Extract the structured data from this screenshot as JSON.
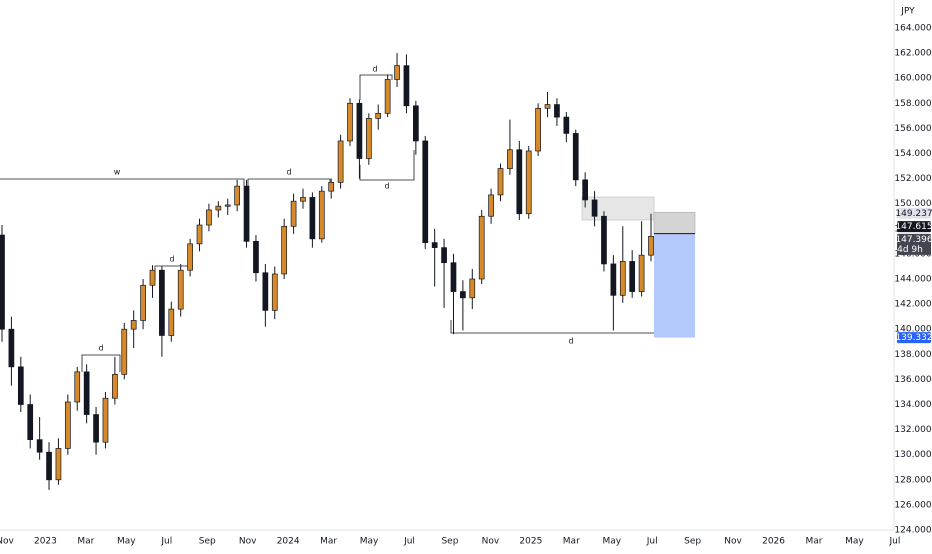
{
  "chart_data": {
    "type": "candlestick",
    "currency": "JPY",
    "up_color": "#d68a2a",
    "down_color": "#131722",
    "ylim": [
      124,
      164
    ],
    "yticks": [
      {
        "value": 124,
        "label": "124.000"
      },
      {
        "value": 126,
        "label": "126.000"
      },
      {
        "value": 128,
        "label": "128.000"
      },
      {
        "value": 130,
        "label": "130.000"
      },
      {
        "value": 132,
        "label": "132.000"
      },
      {
        "value": 134,
        "label": "134.000"
      },
      {
        "value": 136,
        "label": "136.000"
      },
      {
        "value": 138,
        "label": "138.000"
      },
      {
        "value": 140,
        "label": "140.000"
      },
      {
        "value": 142,
        "label": "142.000"
      },
      {
        "value": 144,
        "label": "144.000"
      },
      {
        "value": 146,
        "label": "146.000"
      },
      {
        "value": 148,
        "label": "148.000"
      },
      {
        "value": 150,
        "label": "150.000"
      },
      {
        "value": 152,
        "label": "152.000"
      },
      {
        "value": 154,
        "label": "154.000"
      },
      {
        "value": 156,
        "label": "156.000"
      },
      {
        "value": 158,
        "label": "158.000"
      },
      {
        "value": 160,
        "label": "160.000"
      },
      {
        "value": 162,
        "label": "162.000"
      },
      {
        "value": 164,
        "label": "164.000"
      }
    ],
    "x_labels": [
      "Nov",
      "2023",
      "Mar",
      "May",
      "Jul",
      "Sep",
      "Nov",
      "2024",
      "Mar",
      "May",
      "Jul",
      "Sep",
      "Nov",
      "2025",
      "Mar",
      "May",
      "Jul",
      "Sep",
      "Nov",
      "2026",
      "Mar",
      "May",
      "Jul"
    ],
    "candles": [
      [
        147.5,
        148.3,
        139.0,
        140.0
      ],
      [
        140.0,
        141.0,
        135.5,
        137.0
      ],
      [
        137.0,
        137.8,
        133.4,
        134.0
      ],
      [
        134.0,
        134.8,
        130.5,
        131.2
      ],
      [
        131.2,
        133.0,
        129.6,
        130.2
      ],
      [
        130.2,
        131.0,
        127.2,
        128.0
      ],
      [
        128.0,
        131.3,
        127.6,
        130.5
      ],
      [
        130.5,
        134.8,
        130.0,
        134.2
      ],
      [
        134.2,
        137.0,
        133.5,
        136.6
      ],
      [
        136.6,
        137.2,
        132.5,
        133.2
      ],
      [
        133.2,
        133.8,
        130.0,
        131.0
      ],
      [
        131.0,
        135.0,
        130.5,
        134.5
      ],
      [
        134.5,
        137.8,
        134.0,
        136.4
      ],
      [
        136.4,
        140.5,
        136.0,
        140.0
      ],
      [
        140.0,
        141.5,
        138.5,
        140.7
      ],
      [
        140.7,
        144.0,
        140.0,
        143.5
      ],
      [
        143.5,
        145.1,
        142.5,
        144.7
      ],
      [
        144.7,
        145.0,
        137.8,
        139.5
      ],
      [
        139.5,
        142.2,
        139.0,
        141.6
      ],
      [
        141.6,
        145.2,
        141.0,
        144.7
      ],
      [
        144.7,
        147.2,
        144.2,
        146.8
      ],
      [
        146.8,
        148.8,
        146.2,
        148.3
      ],
      [
        148.3,
        150.0,
        147.8,
        149.5
      ],
      [
        149.5,
        150.2,
        148.9,
        149.8
      ],
      [
        149.8,
        150.4,
        149.1,
        149.9
      ],
      [
        149.9,
        151.9,
        149.4,
        151.4
      ],
      [
        151.4,
        151.9,
        146.5,
        147.0
      ],
      [
        147.0,
        147.5,
        143.8,
        144.5
      ],
      [
        144.5,
        145.2,
        140.2,
        141.5
      ],
      [
        141.5,
        145.0,
        140.8,
        144.4
      ],
      [
        144.4,
        148.8,
        144.0,
        148.2
      ],
      [
        148.2,
        150.8,
        147.6,
        150.2
      ],
      [
        150.2,
        151.2,
        149.6,
        150.5
      ],
      [
        150.5,
        150.9,
        146.5,
        147.2
      ],
      [
        147.2,
        151.4,
        146.9,
        151.0
      ],
      [
        151.0,
        152.0,
        150.4,
        151.7
      ],
      [
        151.7,
        155.5,
        151.2,
        155.0
      ],
      [
        155.0,
        158.4,
        154.6,
        158.0
      ],
      [
        158.0,
        158.3,
        152.0,
        153.6
      ],
      [
        153.6,
        157.2,
        153.1,
        156.8
      ],
      [
        156.8,
        157.9,
        155.9,
        157.2
      ],
      [
        157.2,
        160.3,
        156.9,
        159.9
      ],
      [
        159.9,
        162.0,
        159.3,
        161.0
      ],
      [
        161.0,
        161.9,
        157.2,
        157.8
      ],
      [
        157.8,
        158.2,
        153.9,
        155.0
      ],
      [
        155.0,
        155.4,
        146.4,
        146.9
      ],
      [
        146.9,
        148.0,
        143.4,
        146.5
      ],
      [
        146.5,
        147.2,
        141.7,
        145.3
      ],
      [
        145.3,
        146.0,
        139.6,
        143.0
      ],
      [
        143.0,
        143.9,
        139.9,
        142.5
      ],
      [
        142.5,
        144.8,
        141.6,
        144.0
      ],
      [
        144.0,
        149.5,
        143.6,
        149.0
      ],
      [
        149.0,
        151.2,
        148.4,
        150.7
      ],
      [
        150.7,
        153.2,
        150.2,
        152.8
      ],
      [
        152.8,
        156.7,
        152.3,
        154.3
      ],
      [
        154.3,
        155.0,
        148.7,
        149.2
      ],
      [
        149.2,
        154.6,
        148.8,
        154.2
      ],
      [
        154.2,
        158.0,
        153.8,
        157.6
      ],
      [
        157.6,
        158.9,
        156.9,
        157.9
      ],
      [
        157.9,
        158.4,
        156.2,
        156.9
      ],
      [
        156.9,
        157.3,
        154.9,
        155.6
      ],
      [
        155.6,
        155.9,
        151.4,
        151.9
      ],
      [
        151.9,
        152.5,
        149.7,
        150.3
      ],
      [
        150.3,
        151.0,
        148.2,
        149.0
      ],
      [
        149.0,
        149.4,
        144.6,
        145.2
      ],
      [
        145.2,
        145.9,
        139.9,
        142.7
      ],
      [
        142.7,
        148.2,
        142.1,
        145.4
      ],
      [
        145.4,
        146.3,
        142.5,
        143.0
      ],
      [
        143.0,
        148.6,
        142.6,
        145.9
      ],
      [
        145.9,
        149.2,
        145.4,
        147.4
      ]
    ],
    "price_labels": [
      149.237,
      147.615,
      147.396,
      139.332
    ],
    "countdown": "4d 9h",
    "annotations": [
      "w",
      "d",
      "d",
      "d",
      "d",
      "d",
      "d"
    ]
  }
}
